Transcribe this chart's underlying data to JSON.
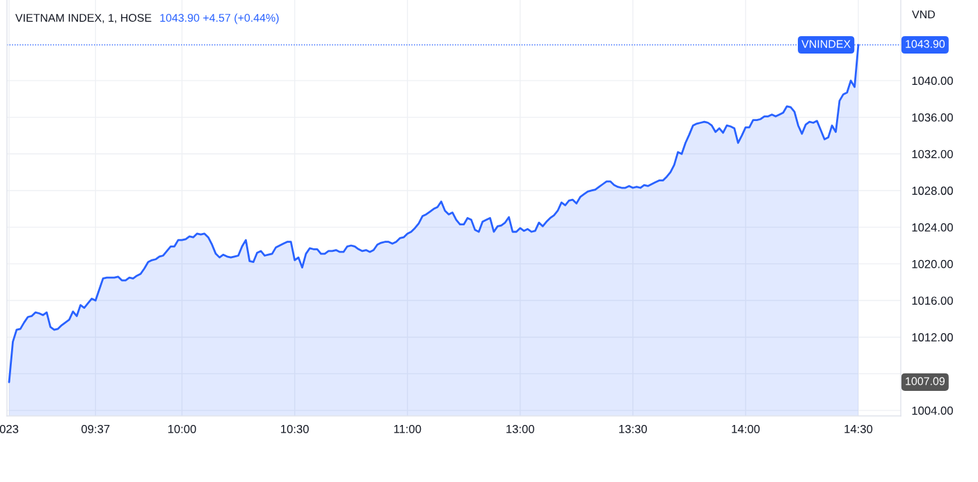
{
  "chart_data": {
    "type": "area",
    "title": "VIETNAM INDEX, 1, HOSE",
    "subtitle": "1043.90 +4.57 (+0.44%)",
    "ylabel": "VND",
    "categories": [
      "023",
      null,
      null,
      null,
      null,
      null,
      null,
      null,
      null,
      null,
      null,
      null,
      null,
      null,
      null,
      null,
      null,
      null,
      null,
      null,
      null,
      null,
      null,
      "09:37",
      null,
      null,
      null,
      null,
      null,
      null,
      null,
      null,
      null,
      null,
      null,
      null,
      null,
      null,
      null,
      null,
      null,
      null,
      null,
      null,
      null,
      null,
      "10:00",
      null,
      null,
      null,
      null,
      null,
      null,
      null,
      null,
      null,
      null,
      null,
      null,
      null,
      null,
      null,
      null,
      null,
      null,
      null,
      null,
      null,
      null,
      null,
      null,
      null,
      null,
      null,
      null,
      null,
      "10:30",
      null,
      null,
      null,
      null,
      null,
      null,
      null,
      null,
      null,
      null,
      null,
      null,
      null,
      null,
      null,
      null,
      null,
      null,
      null,
      null,
      null,
      null,
      null,
      null,
      null,
      null,
      null,
      null,
      null,
      "11:00",
      null,
      null,
      null,
      null,
      null,
      null,
      null,
      null,
      null,
      null,
      null,
      null,
      null,
      null,
      null,
      null,
      null,
      null,
      null,
      null,
      null,
      null,
      null,
      null,
      null,
      null,
      null,
      null,
      null,
      "13:00",
      null,
      null,
      null,
      null,
      null,
      null,
      null,
      null,
      null,
      null,
      null,
      null,
      null,
      null,
      null,
      null,
      null,
      null,
      null,
      null,
      null,
      null,
      null,
      null,
      null,
      null,
      null,
      null,
      null,
      "13:30",
      null,
      null,
      null,
      null,
      null,
      null,
      null,
      null,
      null,
      null,
      null,
      null,
      null,
      null,
      null,
      null,
      null,
      null,
      null,
      null,
      null,
      null,
      null,
      null,
      null,
      null,
      null,
      null,
      null,
      "14:00",
      null,
      null,
      null,
      null,
      null,
      null,
      null,
      null,
      null,
      null,
      null,
      null,
      null,
      null,
      null,
      null,
      null,
      null,
      null,
      null,
      null,
      null,
      null,
      null,
      null,
      null,
      null,
      null,
      null,
      "14:30"
    ],
    "series": [
      {
        "name": "VNINDEX",
        "color": "#2962ff",
        "values": [
          1007.09,
          1011.5,
          1012.8,
          1012.9,
          1013.6,
          1014.2,
          1014.3,
          1014.7,
          1014.6,
          1014.4,
          1014.7,
          1013.1,
          1012.8,
          1012.9,
          1013.3,
          1013.6,
          1013.9,
          1014.8,
          1014.3,
          1015.5,
          1015.2,
          1015.7,
          1016.2,
          1016.0,
          1017.2,
          1018.4,
          1018.5,
          1018.5,
          1018.5,
          1018.6,
          1018.2,
          1018.2,
          1018.5,
          1018.4,
          1018.7,
          1018.9,
          1019.5,
          1020.2,
          1020.4,
          1020.5,
          1020.8,
          1020.9,
          1021.4,
          1021.9,
          1021.9,
          1022.6,
          1022.6,
          1022.7,
          1023.0,
          1022.9,
          1023.3,
          1023.2,
          1023.3,
          1022.9,
          1022.1,
          1021.1,
          1020.7,
          1021.0,
          1020.8,
          1020.7,
          1020.8,
          1020.9,
          1021.9,
          1022.6,
          1020.3,
          1020.2,
          1021.2,
          1021.4,
          1020.9,
          1021.0,
          1021.1,
          1021.8,
          1022.0,
          1022.2,
          1022.4,
          1022.4,
          1020.4,
          1020.7,
          1019.6,
          1021.1,
          1021.7,
          1021.6,
          1021.6,
          1021.1,
          1021.1,
          1021.4,
          1021.4,
          1021.5,
          1021.3,
          1021.3,
          1021.9,
          1022.0,
          1021.9,
          1021.6,
          1021.4,
          1021.5,
          1021.3,
          1021.5,
          1022.1,
          1022.3,
          1022.4,
          1022.4,
          1022.2,
          1022.4,
          1022.8,
          1022.9,
          1023.3,
          1023.5,
          1023.9,
          1024.4,
          1025.2,
          1025.4,
          1025.7,
          1026.0,
          1026.2,
          1026.8,
          1025.8,
          1025.4,
          1025.6,
          1024.8,
          1024.3,
          1024.3,
          1025.0,
          1024.8,
          1023.7,
          1023.5,
          1024.6,
          1024.8,
          1025.0,
          1023.5,
          1024.1,
          1024.2,
          1024.5,
          1025.1,
          1023.5,
          1023.5,
          1023.9,
          1023.6,
          1023.8,
          1023.5,
          1023.6,
          1024.5,
          1024.1,
          1024.6,
          1025.0,
          1025.3,
          1025.8,
          1026.7,
          1026.4,
          1026.9,
          1027.0,
          1026.6,
          1027.3,
          1027.6,
          1027.9,
          1028.0,
          1028.1,
          1028.4,
          1028.7,
          1029.0,
          1029.0,
          1028.6,
          1028.4,
          1028.3,
          1028.3,
          1028.5,
          1028.3,
          1028.4,
          1028.3,
          1028.6,
          1028.5,
          1028.7,
          1028.9,
          1029.1,
          1029.1,
          1029.5,
          1030.0,
          1030.8,
          1032.2,
          1032.0,
          1033.2,
          1034.1,
          1035.1,
          1035.3,
          1035.4,
          1035.5,
          1035.4,
          1035.1,
          1034.4,
          1034.8,
          1034.3,
          1035.1,
          1035.0,
          1034.8,
          1033.2,
          1034.0,
          1034.9,
          1034.9,
          1035.7,
          1035.7,
          1035.8,
          1036.1,
          1036.1,
          1036.3,
          1036.1,
          1036.3,
          1036.5,
          1037.2,
          1037.1,
          1036.6,
          1035.1,
          1034.2,
          1035.2,
          1035.5,
          1035.4,
          1035.6,
          1034.6,
          1033.6,
          1033.8,
          1035.1,
          1034.4,
          1037.8,
          1038.5,
          1038.7,
          1040.0,
          1039.3,
          1043.9
        ]
      }
    ],
    "ylim": [
      1003.4,
      1048.8
    ],
    "yticks": [
      {
        "value": 1004,
        "label": "1004.00"
      },
      {
        "value": 1008,
        "label": null
      },
      {
        "value": 1012,
        "label": "1012.00"
      },
      {
        "value": 1016,
        "label": "1016.00"
      },
      {
        "value": 1020,
        "label": "1020.00"
      },
      {
        "value": 1024,
        "label": "1024.00"
      },
      {
        "value": 1028,
        "label": "1028.00"
      },
      {
        "value": 1032,
        "label": "1032.00"
      },
      {
        "value": 1036,
        "label": "1036.00"
      },
      {
        "value": 1040,
        "label": "1040.00"
      }
    ],
    "grid": true,
    "ref_lines": [
      {
        "axis": "y",
        "value": 1043.9,
        "label": "1043.90",
        "color": "#2962ff",
        "line_style": "dotted"
      }
    ],
    "annotations": [
      "1007.09"
    ]
  }
}
